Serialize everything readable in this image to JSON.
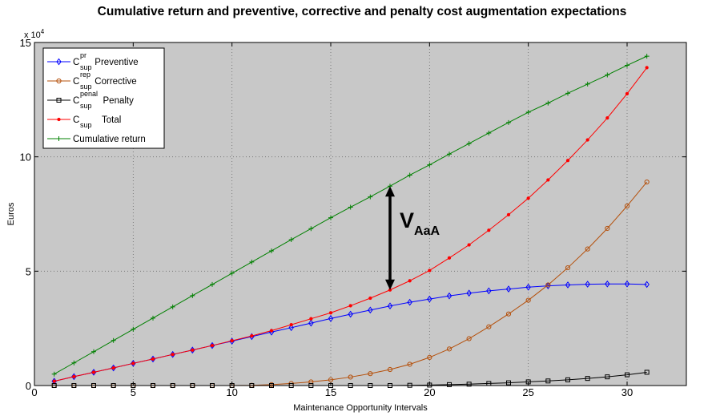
{
  "chart_data": {
    "type": "line",
    "title": "Cumulative return and preventive, corrective and penalty cost augmentation expectations",
    "xlabel": "Maintenance Opportunity Intervals",
    "ylabel": "Euros",
    "y_multiplier_label": "x 10",
    "y_multiplier_exponent": "4",
    "y_scale": 10000,
    "xlim": [
      0,
      33
    ],
    "ylim": [
      0,
      15
    ],
    "xticks": [
      0,
      5,
      10,
      15,
      20,
      25,
      30
    ],
    "yticks": [
      0,
      5,
      10,
      15
    ],
    "grid": true,
    "background": "#c8c8c8",
    "legend_position": "top-left",
    "x": [
      1,
      2,
      3,
      4,
      5,
      6,
      7,
      8,
      9,
      10,
      11,
      12,
      13,
      14,
      15,
      16,
      17,
      18,
      19,
      20,
      21,
      22,
      23,
      24,
      25,
      26,
      27,
      28,
      29,
      30,
      31
    ],
    "series": [
      {
        "name": "Preventive",
        "symbol": "C",
        "sup": "pr",
        "sub": "sup",
        "color": "#0000ff",
        "marker": "diamond",
        "values": [
          0.19,
          0.39,
          0.58,
          0.77,
          0.97,
          1.16,
          1.36,
          1.55,
          1.75,
          1.94,
          2.14,
          2.34,
          2.53,
          2.73,
          2.93,
          3.12,
          3.3,
          3.48,
          3.64,
          3.78,
          3.92,
          4.04,
          4.14,
          4.22,
          4.3,
          4.36,
          4.4,
          4.43,
          4.44,
          4.44,
          4.42
        ]
      },
      {
        "name": "Corrective",
        "symbol": "C",
        "sup": "rep",
        "sub": "sup",
        "color": "#b5500b",
        "marker": "circle",
        "values": [
          0,
          0,
          0,
          0,
          0,
          0,
          0,
          0,
          0,
          0,
          0.01,
          0.04,
          0.09,
          0.16,
          0.25,
          0.37,
          0.52,
          0.7,
          0.93,
          1.23,
          1.6,
          2.05,
          2.57,
          3.13,
          3.73,
          4.4,
          5.15,
          5.97,
          6.87,
          7.85,
          8.9
        ]
      },
      {
        "name": "Penalty",
        "symbol": "C",
        "sup": "penal",
        "sub": "sup",
        "color": "#000000",
        "marker": "square",
        "values": [
          0,
          0,
          0,
          0,
          0,
          0,
          0,
          0,
          0,
          0,
          0,
          0,
          0,
          0,
          0,
          0,
          0,
          0,
          0.01,
          0.02,
          0.04,
          0.06,
          0.09,
          0.12,
          0.16,
          0.2,
          0.25,
          0.31,
          0.38,
          0.47,
          0.58
        ]
      },
      {
        "name": "Total",
        "symbol": "C",
        "sup": "",
        "sub": "sup",
        "color": "#ff0000",
        "marker": "dot",
        "values": [
          0.19,
          0.39,
          0.58,
          0.77,
          0.97,
          1.16,
          1.36,
          1.55,
          1.75,
          1.96,
          2.17,
          2.4,
          2.66,
          2.92,
          3.18,
          3.49,
          3.82,
          4.18,
          4.58,
          5.03,
          5.58,
          6.15,
          6.79,
          7.47,
          8.19,
          8.99,
          9.84,
          10.74,
          11.7,
          12.76,
          13.9
        ]
      },
      {
        "name": "Cumulative return",
        "color": "#008000",
        "marker": "plus",
        "values": [
          0.5,
          0.99,
          1.48,
          1.97,
          2.46,
          2.95,
          3.44,
          3.93,
          4.42,
          4.91,
          5.4,
          5.89,
          6.38,
          6.86,
          7.34,
          7.8,
          8.25,
          8.72,
          9.2,
          9.65,
          10.12,
          10.58,
          11.04,
          11.5,
          11.95,
          12.35,
          12.78,
          13.18,
          13.58,
          14.0,
          14.4
        ]
      }
    ],
    "annotation": {
      "label": "V",
      "sub": "AaA",
      "x": 18,
      "y_top": 8.72,
      "y_bottom": 4.18
    }
  }
}
